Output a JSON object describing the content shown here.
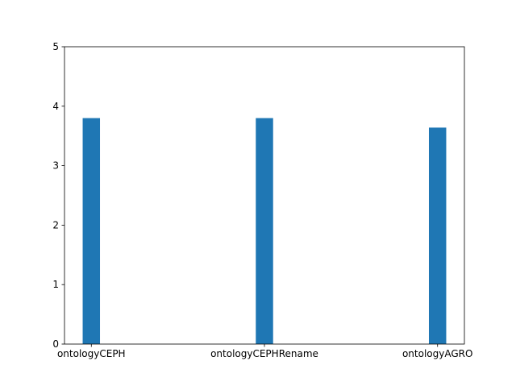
{
  "chart_data": {
    "type": "bar",
    "title": "",
    "xlabel": "",
    "ylabel": "",
    "categories": [
      "ontologyCEPH",
      "ontologyCEPHRename",
      "ontologyAGRO"
    ],
    "values": [
      3.8,
      3.8,
      3.64
    ],
    "ylim": [
      0,
      5
    ],
    "yticks": [
      0,
      1,
      2,
      3,
      4,
      5
    ],
    "grid": false,
    "legend": "none",
    "bar_color": "#1f77b4"
  }
}
